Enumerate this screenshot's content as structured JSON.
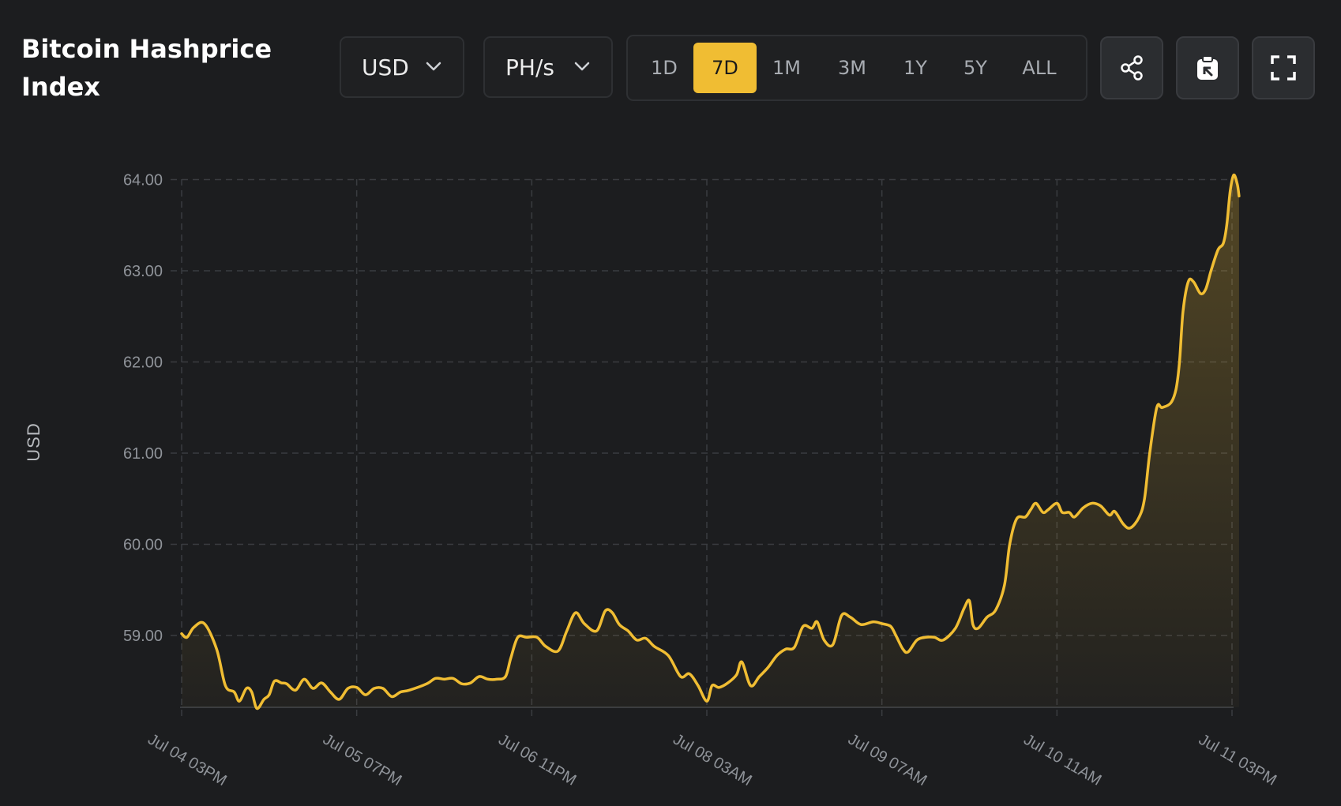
{
  "header": {
    "title": "Bitcoin Hashprice Index",
    "currency": {
      "selected": "USD"
    },
    "unit": {
      "selected": "PH/s"
    },
    "ranges": [
      "1D",
      "7D",
      "1M",
      "3M",
      "1Y",
      "5Y",
      "ALL"
    ],
    "active_range": "7D",
    "actions": {
      "share": "share-icon",
      "copy": "clipboard-icon",
      "fullscreen": "fullscreen-icon"
    }
  },
  "colors": {
    "background": "#1c1d1f",
    "accent": "#f0bd33",
    "grid": "#3a3c40",
    "tick_text": "#8f9399"
  },
  "chart_data": {
    "type": "area",
    "title": "",
    "xlabel": "",
    "ylabel": "USD",
    "ylim": [
      58.2,
      64.0
    ],
    "yticks": [
      64.0,
      63.0,
      62.0,
      61.0,
      60.0,
      59.0
    ],
    "ytick_labels": [
      "64.00",
      "63.00",
      "62.00",
      "61.00",
      "60.00",
      "59.00"
    ],
    "xticks": [
      0,
      1,
      2,
      3,
      4,
      5,
      6
    ],
    "xtick_labels": [
      "Jul 04 03PM",
      "Jul 05 07PM",
      "Jul 06 11PM",
      "Jul 08 03AM",
      "Jul 09 07AM",
      "Jul 10 11AM",
      "Jul 11 03PM"
    ],
    "xlim": [
      0,
      6
    ],
    "grid": true,
    "legend": "none",
    "series": [
      {
        "values": [
          [
            0.0,
            59.02
          ],
          [
            0.03,
            58.98
          ],
          [
            0.07,
            59.09
          ],
          [
            0.13,
            59.13
          ],
          [
            0.2,
            58.85
          ],
          [
            0.25,
            58.45
          ],
          [
            0.3,
            58.38
          ],
          [
            0.33,
            58.28
          ],
          [
            0.37,
            58.42
          ],
          [
            0.4,
            58.38
          ],
          [
            0.43,
            58.2
          ],
          [
            0.47,
            58.3
          ],
          [
            0.5,
            58.35
          ],
          [
            0.53,
            58.5
          ],
          [
            0.57,
            58.48
          ],
          [
            0.6,
            58.47
          ],
          [
            0.65,
            58.4
          ],
          [
            0.7,
            58.52
          ],
          [
            0.75,
            58.42
          ],
          [
            0.8,
            58.48
          ],
          [
            0.85,
            58.38
          ],
          [
            0.9,
            58.3
          ],
          [
            0.95,
            58.42
          ],
          [
            1.0,
            58.43
          ],
          [
            1.05,
            58.35
          ],
          [
            1.1,
            58.42
          ],
          [
            1.15,
            58.42
          ],
          [
            1.2,
            58.33
          ],
          [
            1.25,
            58.38
          ],
          [
            1.3,
            58.4
          ],
          [
            1.4,
            58.47
          ],
          [
            1.45,
            58.53
          ],
          [
            1.5,
            58.52
          ],
          [
            1.55,
            58.53
          ],
          [
            1.6,
            58.47
          ],
          [
            1.65,
            58.48
          ],
          [
            1.7,
            58.55
          ],
          [
            1.75,
            58.52
          ],
          [
            1.8,
            58.52
          ],
          [
            1.85,
            58.55
          ],
          [
            1.88,
            58.75
          ],
          [
            1.92,
            58.98
          ],
          [
            1.97,
            58.98
          ],
          [
            2.03,
            58.98
          ],
          [
            2.08,
            58.88
          ],
          [
            2.15,
            58.83
          ],
          [
            2.2,
            59.05
          ],
          [
            2.25,
            59.25
          ],
          [
            2.3,
            59.13
          ],
          [
            2.37,
            59.05
          ],
          [
            2.42,
            59.27
          ],
          [
            2.46,
            59.25
          ],
          [
            2.5,
            59.12
          ],
          [
            2.55,
            59.05
          ],
          [
            2.6,
            58.95
          ],
          [
            2.65,
            58.97
          ],
          [
            2.7,
            58.88
          ],
          [
            2.78,
            58.78
          ],
          [
            2.85,
            58.55
          ],
          [
            2.9,
            58.58
          ],
          [
            2.95,
            58.45
          ],
          [
            3.0,
            58.28
          ],
          [
            3.03,
            58.45
          ],
          [
            3.07,
            58.43
          ],
          [
            3.12,
            58.48
          ],
          [
            3.17,
            58.57
          ],
          [
            3.2,
            58.71
          ],
          [
            3.25,
            58.45
          ],
          [
            3.3,
            58.55
          ],
          [
            3.35,
            58.65
          ],
          [
            3.4,
            58.78
          ],
          [
            3.45,
            58.85
          ],
          [
            3.5,
            58.87
          ],
          [
            3.55,
            59.1
          ],
          [
            3.6,
            59.08
          ],
          [
            3.63,
            59.15
          ],
          [
            3.67,
            58.95
          ],
          [
            3.72,
            58.9
          ],
          [
            3.77,
            59.22
          ],
          [
            3.82,
            59.2
          ],
          [
            3.88,
            59.12
          ],
          [
            3.95,
            59.15
          ],
          [
            4.0,
            59.13
          ],
          [
            4.05,
            59.1
          ],
          [
            4.08,
            59.0
          ],
          [
            4.12,
            58.85
          ],
          [
            4.15,
            58.82
          ],
          [
            4.2,
            58.95
          ],
          [
            4.25,
            58.98
          ],
          [
            4.3,
            58.98
          ],
          [
            4.35,
            58.95
          ],
          [
            4.42,
            59.08
          ],
          [
            4.47,
            59.3
          ],
          [
            4.5,
            59.38
          ],
          [
            4.52,
            59.12
          ],
          [
            4.55,
            59.08
          ],
          [
            4.6,
            59.2
          ],
          [
            4.65,
            59.28
          ],
          [
            4.7,
            59.55
          ],
          [
            4.73,
            60.0
          ],
          [
            4.77,
            60.28
          ],
          [
            4.82,
            60.3
          ],
          [
            4.85,
            60.38
          ],
          [
            4.88,
            60.45
          ],
          [
            4.92,
            60.35
          ],
          [
            4.95,
            60.38
          ],
          [
            5.0,
            60.45
          ],
          [
            5.03,
            60.35
          ],
          [
            5.07,
            60.35
          ],
          [
            5.1,
            60.3
          ],
          [
            5.15,
            60.4
          ],
          [
            5.2,
            60.45
          ],
          [
            5.25,
            60.42
          ],
          [
            5.3,
            60.32
          ],
          [
            5.33,
            60.36
          ],
          [
            5.38,
            60.22
          ],
          [
            5.42,
            60.18
          ],
          [
            5.47,
            60.3
          ],
          [
            5.5,
            60.5
          ],
          [
            5.53,
            61.0
          ],
          [
            5.57,
            61.5
          ],
          [
            5.6,
            61.5
          ],
          [
            5.65,
            61.55
          ],
          [
            5.68,
            61.7
          ],
          [
            5.7,
            62.0
          ],
          [
            5.72,
            62.55
          ],
          [
            5.75,
            62.88
          ],
          [
            5.78,
            62.88
          ],
          [
            5.82,
            62.75
          ],
          [
            5.85,
            62.8
          ],
          [
            5.88,
            63.0
          ],
          [
            5.92,
            63.23
          ],
          [
            5.95,
            63.3
          ],
          [
            5.97,
            63.5
          ],
          [
            5.99,
            63.88
          ],
          [
            6.01,
            64.05
          ],
          [
            6.03,
            63.95
          ],
          [
            6.04,
            63.82
          ]
        ]
      }
    ]
  }
}
